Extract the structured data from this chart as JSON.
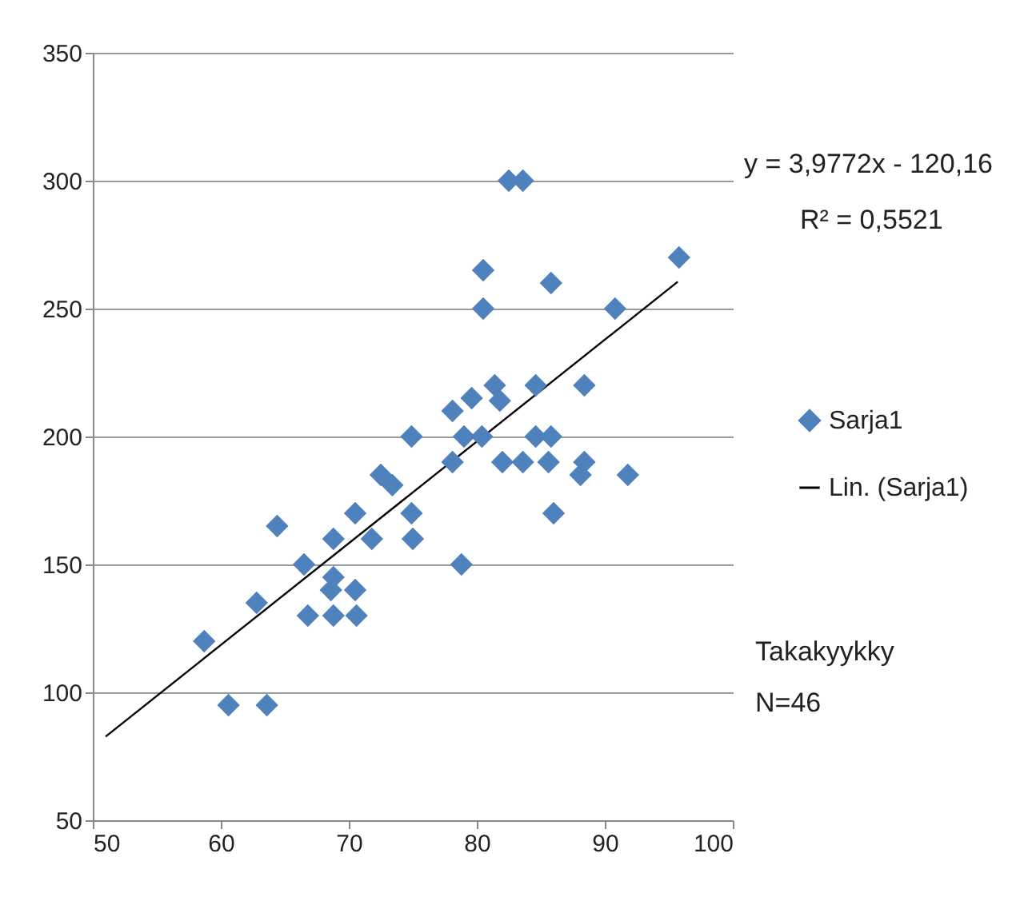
{
  "chart_data": {
    "type": "scatter",
    "legend": "right",
    "grid": "y",
    "xlim": [
      50,
      100
    ],
    "xticks": [
      50,
      60,
      70,
      80,
      90,
      100
    ],
    "ylim": [
      50,
      350
    ],
    "yticks": [
      50,
      100,
      150,
      200,
      250,
      300,
      350
    ],
    "annotations": [
      "y = 3,9772x - 120,16",
      "R² = 0,5521",
      "Takakyykky",
      "N=46"
    ],
    "series": [
      {
        "name": "Sarja1",
        "marker": "diamond",
        "color": "#4f81bd",
        "x": [
          58.7,
          60.6,
          63.6,
          62.8,
          64.4,
          66.5,
          66.8,
          68.8,
          68.8,
          68.6,
          68.8,
          70.5,
          71.8,
          70.5,
          70.6,
          72.5,
          73.4,
          74.9,
          74.9,
          75,
          82.5,
          83.6,
          80.5,
          80.5,
          85.8,
          90.8,
          95.8,
          78.1,
          79.6,
          81.4,
          81.8,
          84.6,
          88.4,
          79,
          80.4,
          84.6,
          85.8,
          78.1,
          82,
          83.6,
          85.6,
          88.4,
          88.1,
          91.8,
          86,
          78.8
        ],
        "values": [
          120,
          95,
          95,
          135,
          165,
          150,
          130,
          160,
          145,
          140,
          130,
          170,
          160,
          140,
          130,
          185,
          181,
          200,
          170,
          160,
          300,
          300,
          265,
          250,
          260,
          250,
          270,
          210,
          215,
          220,
          214,
          220,
          220,
          200,
          200,
          200,
          200,
          190,
          190,
          190,
          190,
          190,
          185,
          185,
          170,
          150
        ]
      },
      {
        "name": "Lin. (Sarja1)",
        "type": "line",
        "color": "#000000",
        "line_style": "solid",
        "marker": "none",
        "x": [
          51,
          95.7
        ],
        "values": [
          82.7,
          260.5
        ]
      }
    ]
  }
}
